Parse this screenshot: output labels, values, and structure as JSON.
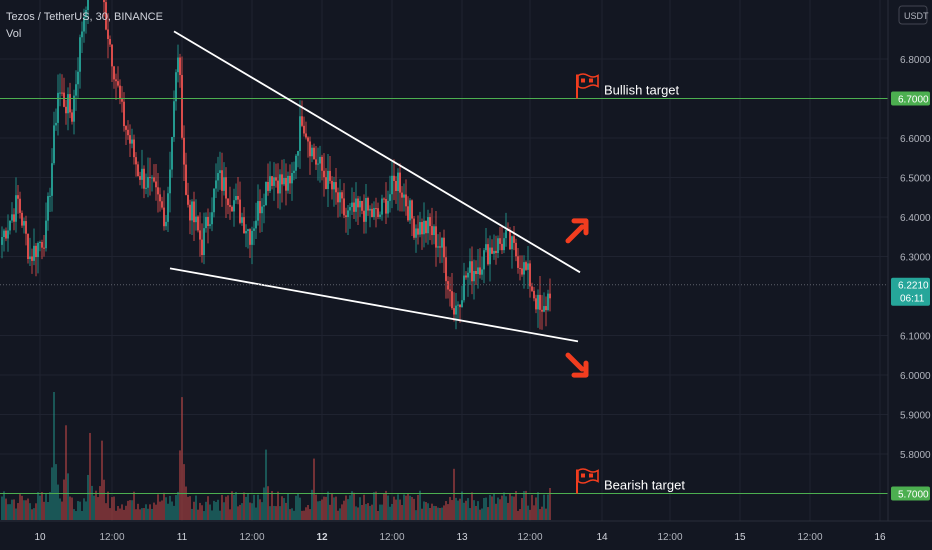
{
  "header": {
    "symbol": "Tezos / TetherUS, 30, BINANCE",
    "volume_label": "Vol",
    "currency": "USDT"
  },
  "chart_data": {
    "type": "candlestick",
    "title": "Tezos / TetherUS, 30, BINANCE",
    "xlabel": "",
    "ylabel": "",
    "ylim": [
      5.67,
      6.99
    ],
    "y_ticks": [
      "6.8000",
      "6.6000",
      "6.5000",
      "6.4000",
      "6.3000",
      "6.1000",
      "6.0000",
      "5.9000",
      "5.8000"
    ],
    "x_ticks": [
      "10",
      "12:00",
      "11",
      "12:00",
      "12",
      "12:00",
      "13",
      "12:00",
      "14",
      "12:00",
      "15",
      "12:00",
      "16"
    ],
    "grid": true,
    "last_price": "6.2210",
    "countdown": "06:11",
    "colors": {
      "up": "#26a69a",
      "down": "#ef5350",
      "level": "#4caf50",
      "trend": "#ffffff",
      "arrow": "#f23d1f",
      "background": "#131722"
    },
    "trendlines": [
      {
        "name": "falling-wedge-upper",
        "from": {
          "bar": 86,
          "price": 6.87
        },
        "to": {
          "bar": 289,
          "price": 6.26
        }
      },
      {
        "name": "falling-wedge-lower",
        "from": {
          "bar": 84,
          "price": 6.27
        },
        "to": {
          "bar": 288,
          "price": 6.085
        }
      }
    ],
    "levels": [
      {
        "price": 6.7,
        "label": "6.7000",
        "annotation": "Bullish target"
      },
      {
        "price": 5.7,
        "label": "5.7000",
        "annotation": "Bearish target"
      }
    ],
    "arrows": [
      {
        "direction": "up",
        "bar": 288,
        "price": 6.37
      },
      {
        "direction": "down",
        "bar": 288,
        "price": 6.02
      }
    ],
    "keypoints": [
      {
        "bar": 0,
        "price": 6.35
      },
      {
        "bar": 8,
        "price": 6.44
      },
      {
        "bar": 14,
        "price": 6.3
      },
      {
        "bar": 22,
        "price": 6.36
      },
      {
        "bar": 28,
        "price": 6.72
      },
      {
        "bar": 35,
        "price": 6.66
      },
      {
        "bar": 40,
        "price": 6.88
      },
      {
        "bar": 46,
        "price": 7.1
      },
      {
        "bar": 52,
        "price": 6.9
      },
      {
        "bar": 60,
        "price": 6.66
      },
      {
        "bar": 68,
        "price": 6.52
      },
      {
        "bar": 76,
        "price": 6.46
      },
      {
        "bar": 82,
        "price": 6.4
      },
      {
        "bar": 88,
        "price": 6.82
      },
      {
        "bar": 92,
        "price": 6.45
      },
      {
        "bar": 100,
        "price": 6.33
      },
      {
        "bar": 108,
        "price": 6.5
      },
      {
        "bar": 116,
        "price": 6.44
      },
      {
        "bar": 124,
        "price": 6.36
      },
      {
        "bar": 134,
        "price": 6.51
      },
      {
        "bar": 144,
        "price": 6.47
      },
      {
        "bar": 150,
        "price": 6.66
      },
      {
        "bar": 156,
        "price": 6.55
      },
      {
        "bar": 164,
        "price": 6.48
      },
      {
        "bar": 172,
        "price": 6.4
      },
      {
        "bar": 180,
        "price": 6.42
      },
      {
        "bar": 188,
        "price": 6.4
      },
      {
        "bar": 198,
        "price": 6.5
      },
      {
        "bar": 206,
        "price": 6.38
      },
      {
        "bar": 214,
        "price": 6.37
      },
      {
        "bar": 220,
        "price": 6.32
      },
      {
        "bar": 226,
        "price": 6.16
      },
      {
        "bar": 232,
        "price": 6.25
      },
      {
        "bar": 238,
        "price": 6.28
      },
      {
        "bar": 244,
        "price": 6.32
      },
      {
        "bar": 252,
        "price": 6.34
      },
      {
        "bar": 258,
        "price": 6.3
      },
      {
        "bar": 264,
        "price": 6.24
      },
      {
        "bar": 270,
        "price": 6.14
      },
      {
        "bar": 274,
        "price": 6.22
      }
    ],
    "volume_peaks": [
      {
        "bar": 26,
        "value": 1.0
      },
      {
        "bar": 32,
        "value": 0.74
      },
      {
        "bar": 44,
        "value": 0.68
      },
      {
        "bar": 50,
        "value": 0.62
      },
      {
        "bar": 90,
        "value": 0.96
      },
      {
        "bar": 132,
        "value": 0.55
      },
      {
        "bar": 156,
        "value": 0.48
      },
      {
        "bar": 226,
        "value": 0.4
      },
      {
        "bar": 274,
        "value": 0.25
      }
    ]
  }
}
